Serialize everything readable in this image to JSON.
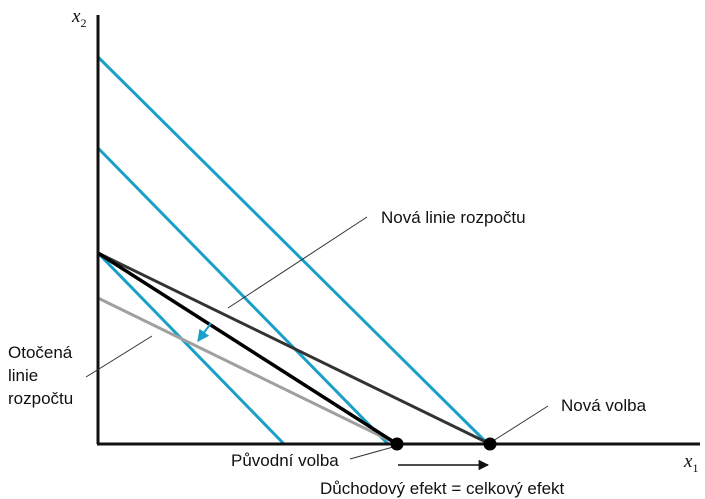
{
  "axes": {
    "x_label": "x",
    "x_subscript": "1",
    "y_label": "x",
    "y_subscript": "2"
  },
  "labels": {
    "new_budget_line": "Nová linie rozpočtu",
    "rotated_budget_line": [
      "Otočená",
      "linie",
      "rozpočtu"
    ],
    "new_choice": "Nová volba",
    "original_choice": "Původní volba",
    "income_effect": "Důchodový efekt = celkový efekt"
  },
  "colors": {
    "indifference_curves": "#1aa0c8",
    "original_budget": "#000000",
    "new_budget": "#333333",
    "rotated_budget": "#a0a0a0"
  }
}
